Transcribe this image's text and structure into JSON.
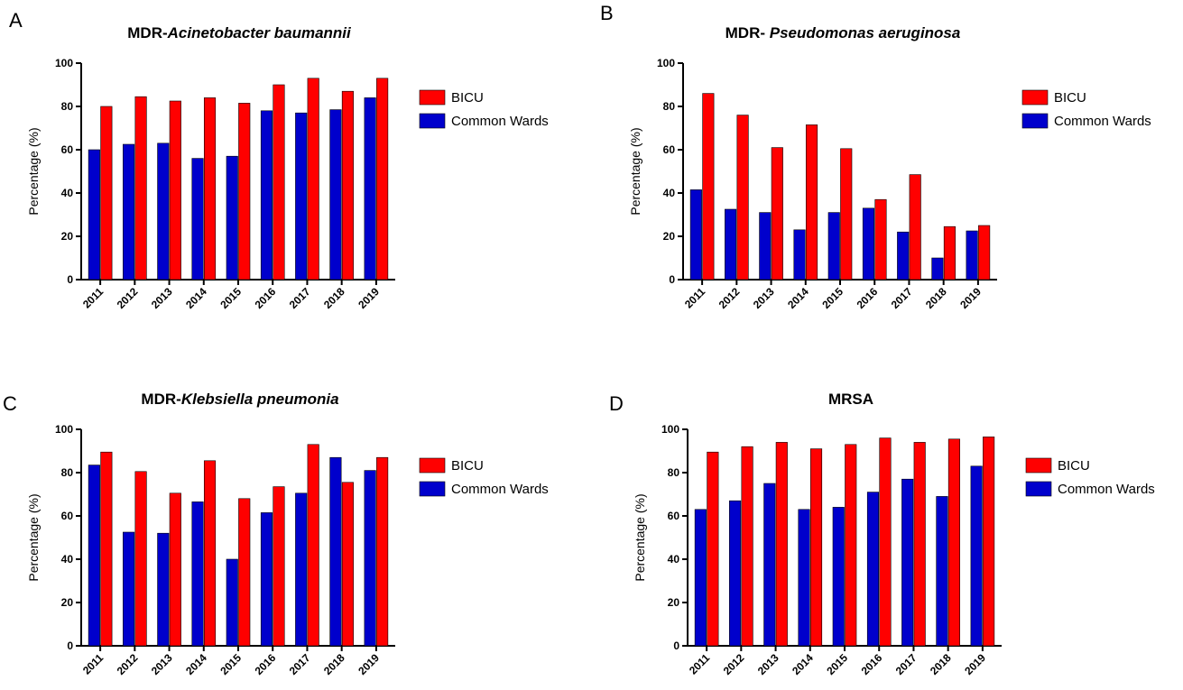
{
  "colors": {
    "BICU": "#ff0000",
    "Common Wards": "#0000cc"
  },
  "chart_data": [
    {
      "letter": "A",
      "type": "bar",
      "title_prefix": "MDR-",
      "title_italic": "Acinetobacter baumannii",
      "ylabel": "Percentage (%)",
      "ylim": [
        0,
        100
      ],
      "yticks": [
        0,
        20,
        40,
        60,
        80,
        100
      ],
      "legend_position": "right",
      "categories": [
        "2011",
        "2012",
        "2013",
        "2014",
        "2015",
        "2016",
        "2017",
        "2018",
        "2019"
      ],
      "series": [
        {
          "name": "Common Wards",
          "values": [
            60,
            62.5,
            63,
            56,
            57,
            78,
            77,
            78.5,
            84
          ]
        },
        {
          "name": "BICU",
          "values": [
            80,
            84.5,
            82.5,
            84,
            81.5,
            90,
            93,
            87,
            93
          ]
        }
      ]
    },
    {
      "letter": "B",
      "type": "bar",
      "title_prefix": "MDR- ",
      "title_italic": "Pseudomonas aeruginosa",
      "ylabel": "Percentage (%)",
      "ylim": [
        0,
        100
      ],
      "yticks": [
        0,
        20,
        40,
        60,
        80,
        100
      ],
      "legend_position": "right",
      "categories": [
        "2011",
        "2012",
        "2013",
        "2014",
        "2015",
        "2016",
        "2017",
        "2018",
        "2019"
      ],
      "series": [
        {
          "name": "Common Wards",
          "values": [
            41.5,
            32.5,
            31,
            23,
            31,
            33,
            22,
            10,
            22.5
          ]
        },
        {
          "name": "BICU",
          "values": [
            86,
            76,
            61,
            71.5,
            60.5,
            37,
            48.5,
            24.5,
            25
          ]
        }
      ]
    },
    {
      "letter": "C",
      "type": "bar",
      "title_prefix": "MDR-",
      "title_italic": "Klebsiella pneumonia",
      "ylabel": "Percentage (%)",
      "ylim": [
        0,
        100
      ],
      "yticks": [
        0,
        20,
        40,
        60,
        80,
        100
      ],
      "legend_position": "right",
      "categories": [
        "2011",
        "2012",
        "2013",
        "2014",
        "2015",
        "2016",
        "2017",
        "2018",
        "2019"
      ],
      "series": [
        {
          "name": "Common Wards",
          "values": [
            83.5,
            52.5,
            52,
            66.5,
            40,
            61.5,
            70.5,
            87,
            81
          ]
        },
        {
          "name": "BICU",
          "values": [
            89.5,
            80.5,
            70.5,
            85.5,
            68,
            73.5,
            93,
            75.5,
            87
          ]
        }
      ]
    },
    {
      "letter": "D",
      "type": "bar",
      "title_prefix": "MRSA",
      "title_italic": "",
      "ylabel": "Percentage (%)",
      "ylim": [
        0,
        100
      ],
      "yticks": [
        0,
        20,
        40,
        60,
        80,
        100
      ],
      "legend_position": "right",
      "categories": [
        "2011",
        "2012",
        "2013",
        "2014",
        "2015",
        "2016",
        "2017",
        "2018",
        "2019"
      ],
      "series": [
        {
          "name": "Common Wards",
          "values": [
            63,
            67,
            75,
            63,
            64,
            71,
            77,
            69,
            83
          ]
        },
        {
          "name": "BICU",
          "values": [
            89.5,
            92,
            94,
            91,
            93,
            96,
            94,
            95.5,
            96.5
          ]
        }
      ]
    }
  ]
}
